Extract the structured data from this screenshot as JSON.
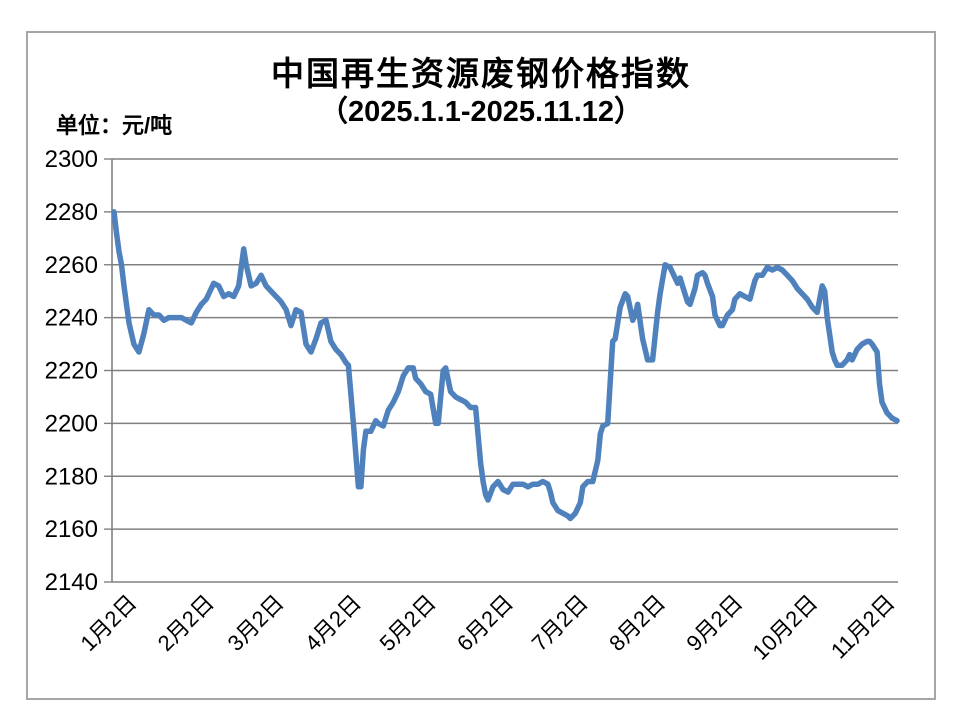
{
  "page": {
    "background": "#ffffff",
    "border_color": "#a6a6a6"
  },
  "chart_data": {
    "type": "line",
    "title": "中国再生资源废钢价格指数",
    "subtitle": "（2025.1.1-2025.11.12）",
    "unit_label": "单位：元/吨",
    "ylabel": "",
    "xlabel": "",
    "ylim": [
      2140,
      2300
    ],
    "y_ticks": [
      2300,
      2280,
      2260,
      2240,
      2220,
      2200,
      2180,
      2160,
      2140
    ],
    "x_unit": "days since 2025-01-02",
    "x_domain_days": [
      0,
      314
    ],
    "x_ticks": [
      {
        "label": "1月2日",
        "day": 0
      },
      {
        "label": "2月2日",
        "day": 31
      },
      {
        "label": "3月2日",
        "day": 59
      },
      {
        "label": "4月2日",
        "day": 90
      },
      {
        "label": "5月2日",
        "day": 120
      },
      {
        "label": "6月2日",
        "day": 151
      },
      {
        "label": "7月2日",
        "day": 181
      },
      {
        "label": "8月2日",
        "day": 212
      },
      {
        "label": "9月2日",
        "day": 243
      },
      {
        "label": "10月2日",
        "day": 273
      },
      {
        "label": "11月2日",
        "day": 304
      }
    ],
    "grid": "horizontal",
    "legend": "none",
    "colors": {
      "line": "#4f81bd",
      "grid": "#808080",
      "axis": "#808080",
      "text": "#000000"
    },
    "series": [
      {
        "color": "#4f81bd",
        "points": [
          [
            0,
            2280
          ],
          [
            1,
            2272
          ],
          [
            2,
            2265
          ],
          [
            3,
            2260
          ],
          [
            4,
            2252
          ],
          [
            6,
            2238
          ],
          [
            8,
            2230
          ],
          [
            10,
            2227
          ],
          [
            12,
            2234
          ],
          [
            14,
            2243
          ],
          [
            16,
            2241
          ],
          [
            18,
            2241
          ],
          [
            20,
            2239
          ],
          [
            22,
            2240
          ],
          [
            25,
            2240
          ],
          [
            27,
            2240
          ],
          [
            29,
            2239
          ],
          [
            31,
            2238
          ],
          [
            33,
            2242
          ],
          [
            35,
            2245
          ],
          [
            37,
            2247
          ],
          [
            39,
            2251
          ],
          [
            40,
            2253
          ],
          [
            42,
            2252
          ],
          [
            44,
            2248
          ],
          [
            46,
            2249
          ],
          [
            48,
            2248
          ],
          [
            50,
            2252
          ],
          [
            52,
            2266
          ],
          [
            53,
            2260
          ],
          [
            55,
            2252
          ],
          [
            57,
            2253
          ],
          [
            59,
            2256
          ],
          [
            61,
            2252
          ],
          [
            63,
            2250
          ],
          [
            65,
            2248
          ],
          [
            67,
            2246
          ],
          [
            69,
            2243
          ],
          [
            71,
            2237
          ],
          [
            73,
            2243
          ],
          [
            75,
            2242
          ],
          [
            77,
            2230
          ],
          [
            79,
            2227
          ],
          [
            81,
            2232
          ],
          [
            83,
            2238
          ],
          [
            85,
            2239
          ],
          [
            87,
            2231
          ],
          [
            89,
            2228
          ],
          [
            91,
            2226
          ],
          [
            93,
            2223
          ],
          [
            94,
            2222
          ],
          [
            96,
            2200
          ],
          [
            98,
            2176
          ],
          [
            99,
            2176
          ],
          [
            100,
            2190
          ],
          [
            101,
            2197
          ],
          [
            103,
            2197
          ],
          [
            105,
            2201
          ],
          [
            106,
            2200
          ],
          [
            108,
            2199
          ],
          [
            110,
            2205
          ],
          [
            112,
            2208
          ],
          [
            114,
            2212
          ],
          [
            116,
            2218
          ],
          [
            118,
            2221
          ],
          [
            120,
            2221
          ],
          [
            121,
            2217
          ],
          [
            123,
            2215
          ],
          [
            125,
            2212
          ],
          [
            127,
            2211
          ],
          [
            129,
            2200
          ],
          [
            130,
            2200
          ],
          [
            132,
            2220
          ],
          [
            133,
            2221
          ],
          [
            135,
            2212
          ],
          [
            137,
            2210
          ],
          [
            139,
            2209
          ],
          [
            141,
            2208
          ],
          [
            143,
            2206
          ],
          [
            145,
            2206
          ],
          [
            147,
            2185
          ],
          [
            148,
            2178
          ],
          [
            149,
            2173
          ],
          [
            150,
            2171
          ],
          [
            152,
            2176
          ],
          [
            154,
            2178
          ],
          [
            156,
            2175
          ],
          [
            158,
            2174
          ],
          [
            160,
            2177
          ],
          [
            162,
            2177
          ],
          [
            164,
            2177
          ],
          [
            166,
            2176
          ],
          [
            168,
            2177
          ],
          [
            170,
            2177
          ],
          [
            172,
            2178
          ],
          [
            174,
            2177
          ],
          [
            175,
            2174
          ],
          [
            176,
            2170
          ],
          [
            178,
            2167
          ],
          [
            180,
            2166
          ],
          [
            182,
            2165
          ],
          [
            183,
            2164
          ],
          [
            185,
            2166
          ],
          [
            187,
            2170
          ],
          [
            188,
            2176
          ],
          [
            190,
            2178
          ],
          [
            192,
            2178
          ],
          [
            194,
            2186
          ],
          [
            195,
            2196
          ],
          [
            196,
            2199
          ],
          [
            198,
            2200
          ],
          [
            200,
            2231
          ],
          [
            201,
            2232
          ],
          [
            203,
            2244
          ],
          [
            205,
            2249
          ],
          [
            206,
            2248
          ],
          [
            208,
            2239
          ],
          [
            209,
            2241
          ],
          [
            210,
            2245
          ],
          [
            212,
            2232
          ],
          [
            214,
            2224
          ],
          [
            216,
            2224
          ],
          [
            218,
            2242
          ],
          [
            219,
            2249
          ],
          [
            221,
            2260
          ],
          [
            223,
            2259
          ],
          [
            224,
            2257
          ],
          [
            226,
            2253
          ],
          [
            227,
            2255
          ],
          [
            228,
            2252
          ],
          [
            230,
            2246
          ],
          [
            231,
            2245
          ],
          [
            233,
            2251
          ],
          [
            234,
            2256
          ],
          [
            236,
            2257
          ],
          [
            237,
            2256
          ],
          [
            238,
            2253
          ],
          [
            240,
            2248
          ],
          [
            241,
            2241
          ],
          [
            243,
            2237
          ],
          [
            244,
            2237
          ],
          [
            246,
            2241
          ],
          [
            248,
            2243
          ],
          [
            249,
            2247
          ],
          [
            251,
            2249
          ],
          [
            253,
            2248
          ],
          [
            255,
            2247
          ],
          [
            257,
            2254
          ],
          [
            258,
            2256
          ],
          [
            260,
            2256
          ],
          [
            262,
            2259
          ],
          [
            264,
            2258
          ],
          [
            266,
            2259
          ],
          [
            268,
            2258
          ],
          [
            270,
            2256
          ],
          [
            272,
            2254
          ],
          [
            274,
            2251
          ],
          [
            276,
            2249
          ],
          [
            278,
            2247
          ],
          [
            280,
            2244
          ],
          [
            282,
            2242
          ],
          [
            284,
            2252
          ],
          [
            285,
            2250
          ],
          [
            286,
            2240
          ],
          [
            288,
            2227
          ],
          [
            289,
            2224
          ],
          [
            290,
            2222
          ],
          [
            292,
            2222
          ],
          [
            294,
            2224
          ],
          [
            295,
            2226
          ],
          [
            296,
            2224
          ],
          [
            298,
            2228
          ],
          [
            300,
            2230
          ],
          [
            302,
            2231
          ],
          [
            303,
            2231
          ],
          [
            304,
            2230
          ],
          [
            306,
            2227
          ],
          [
            307,
            2215
          ],
          [
            308,
            2208
          ],
          [
            310,
            2204
          ],
          [
            311,
            2203
          ],
          [
            312,
            2202
          ],
          [
            314,
            2201
          ]
        ]
      }
    ]
  }
}
